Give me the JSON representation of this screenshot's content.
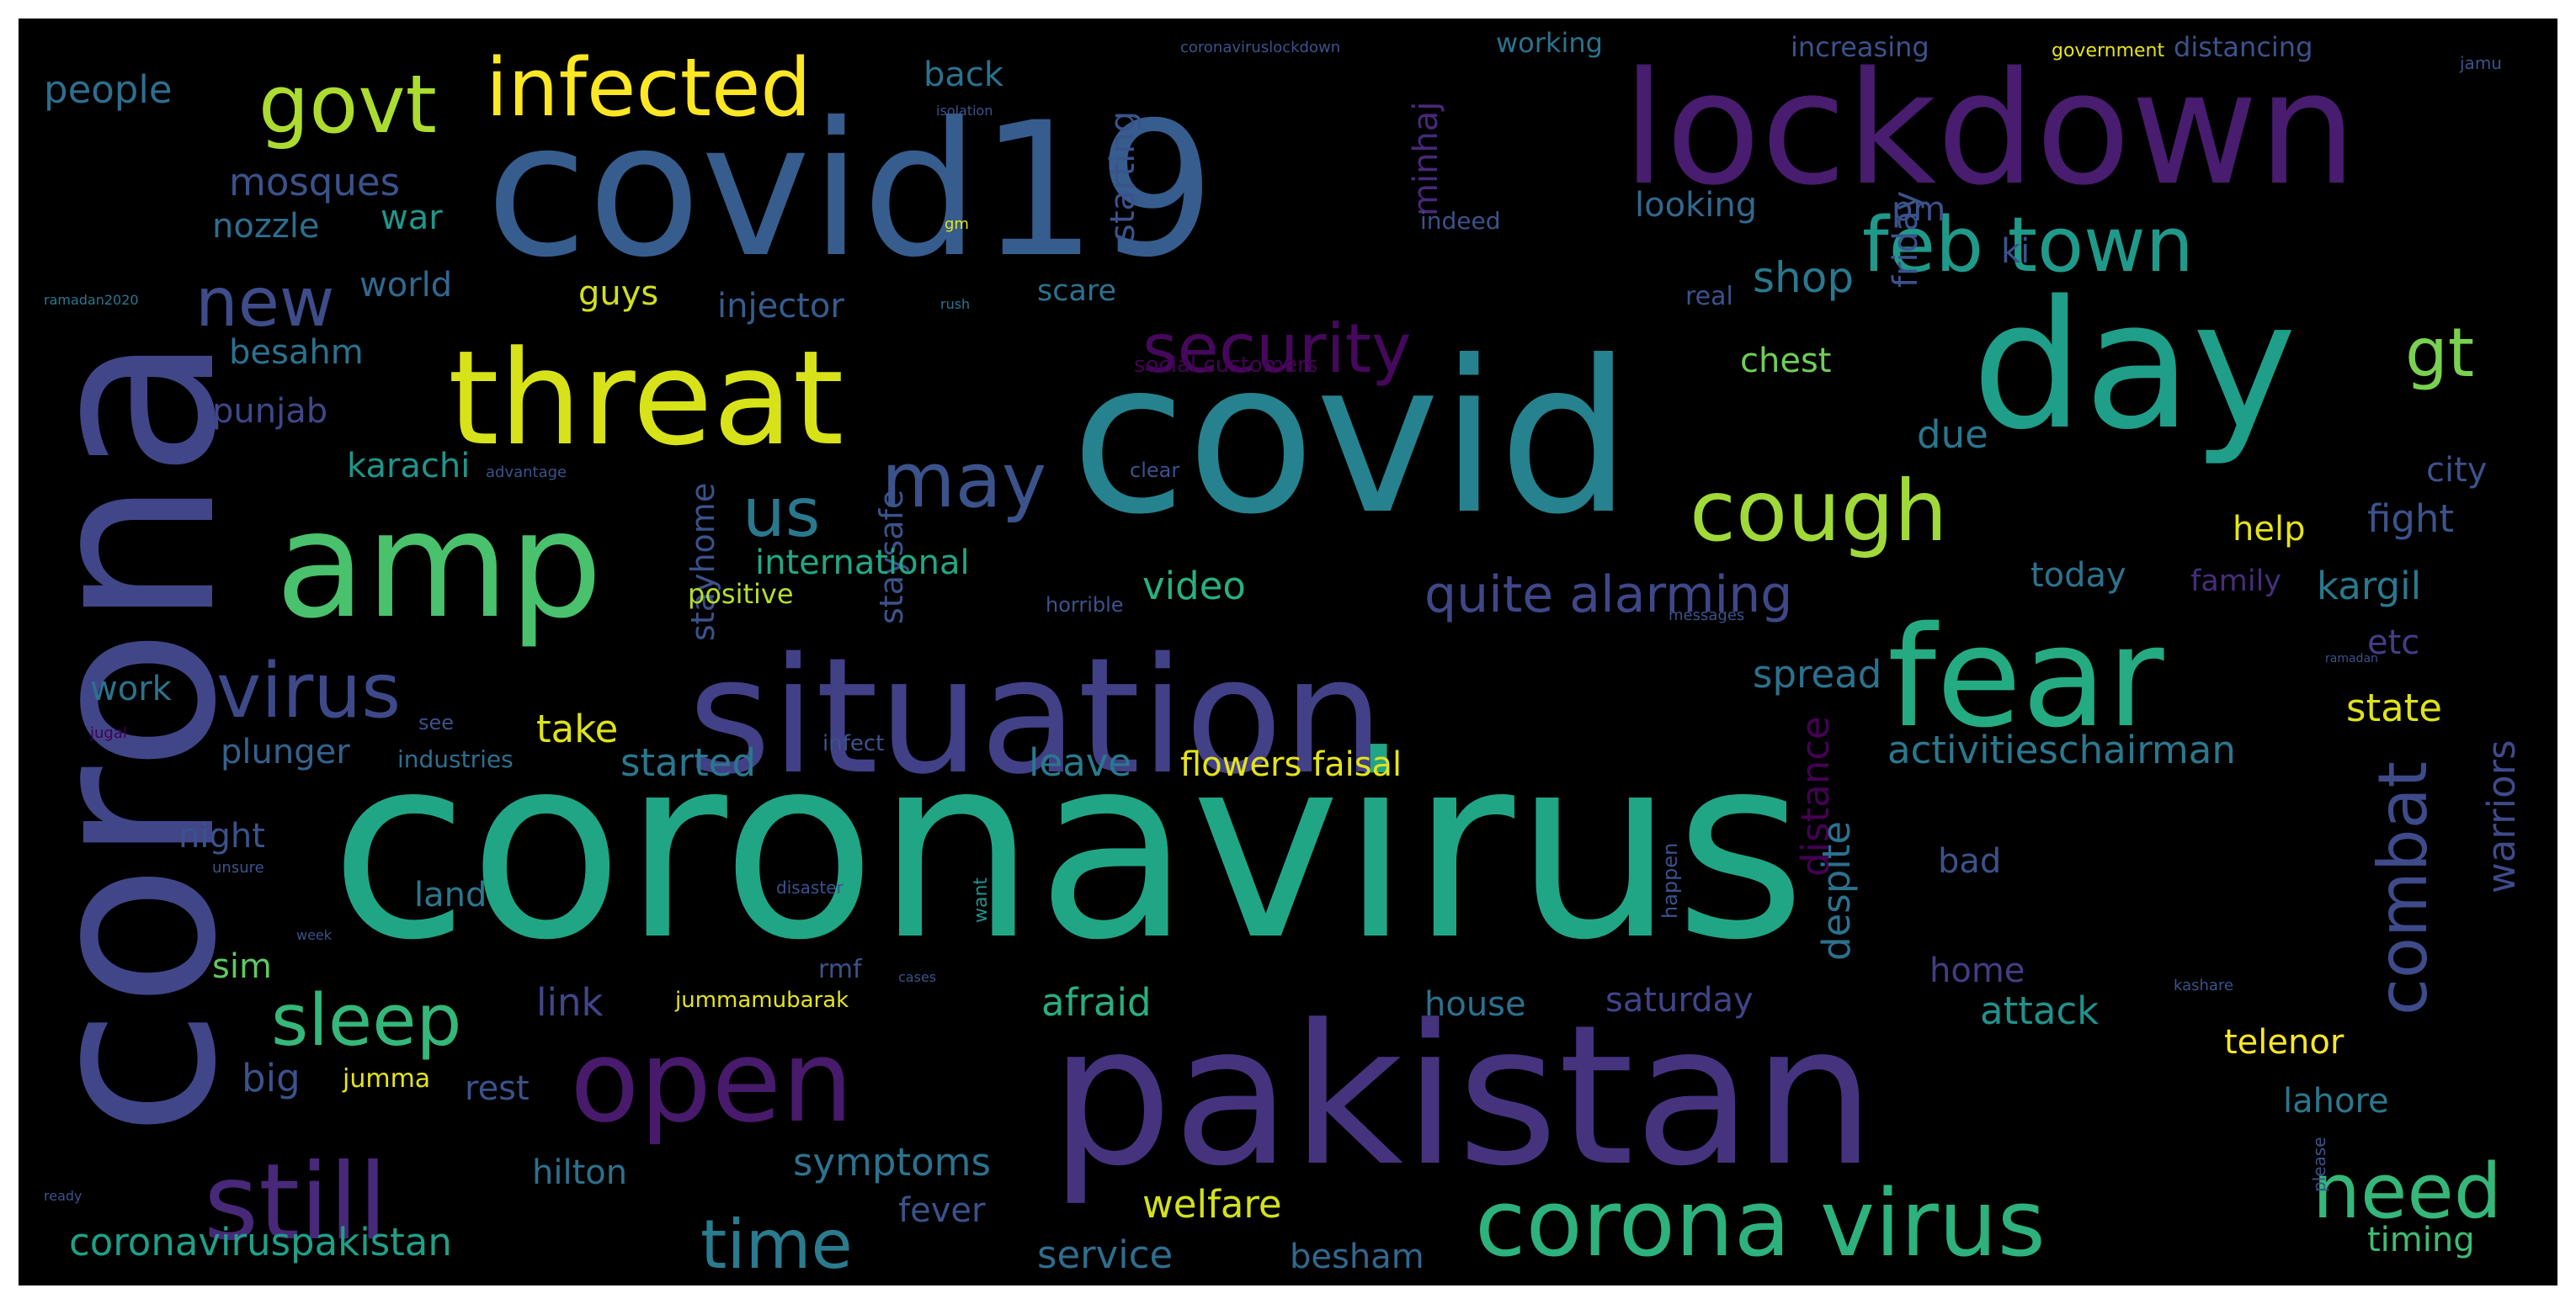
{
  "word_cloud": {
    "background": "#000000",
    "palette": [
      "#440154",
      "#3b528b",
      "#21918c",
      "#5ec962",
      "#fde725"
    ],
    "words": [
      {
        "text": "coronavirus",
        "color": "#21a685"
      },
      {
        "text": "pakistan",
        "color": "#46337e"
      },
      {
        "text": "covid",
        "color": "#26828e"
      },
      {
        "text": "covid19",
        "color": "#365d8d"
      },
      {
        "text": "corona",
        "color": "#404688"
      },
      {
        "text": "situation",
        "color": "#424086"
      },
      {
        "text": "lockdown",
        "color": "#481c6e"
      },
      {
        "text": "day",
        "color": "#1f9e89"
      },
      {
        "text": "threat",
        "color": "#d8e219"
      },
      {
        "text": "amp",
        "color": "#4ac16d"
      },
      {
        "text": "fear",
        "color": "#25ab82"
      },
      {
        "text": "open",
        "color": "#481a6c"
      },
      {
        "text": "corona virus",
        "color": "#2db27d"
      },
      {
        "text": "still",
        "color": "#482878"
      },
      {
        "text": "infected",
        "color": "#fde725"
      },
      {
        "text": "govt",
        "color": "#addc30"
      },
      {
        "text": "virus",
        "color": "#3e4989"
      },
      {
        "text": "sleep",
        "color": "#35b779"
      },
      {
        "text": "new",
        "color": "#3e4c8a"
      },
      {
        "text": "security",
        "color": "#46085c"
      },
      {
        "text": "feb town",
        "color": "#1f9a8a"
      },
      {
        "text": "cough",
        "color": "#a0da39"
      },
      {
        "text": "may",
        "color": "#3b528b"
      },
      {
        "text": "us",
        "color": "#2a788e"
      },
      {
        "text": "combat",
        "color": "#3e4a89"
      },
      {
        "text": "time",
        "color": "#2a7b8e"
      },
      {
        "text": "need",
        "color": "#35b779"
      },
      {
        "text": "gt",
        "color": "#7ad151"
      },
      {
        "text": "quite alarming",
        "color": "#3f4788"
      },
      {
        "text": "people",
        "color": "#2e6e8e"
      },
      {
        "text": "mosques",
        "color": "#3b528b"
      },
      {
        "text": "war",
        "color": "#1f968b"
      },
      {
        "text": "nozzle",
        "color": "#2e6e8e"
      },
      {
        "text": "world",
        "color": "#31688e"
      },
      {
        "text": "guys",
        "color": "#d0e11c"
      },
      {
        "text": "injector",
        "color": "#365c8d"
      },
      {
        "text": "besahm",
        "color": "#2c718e"
      },
      {
        "text": "punjab",
        "color": "#3f4788"
      },
      {
        "text": "karachi",
        "color": "#1f958b"
      },
      {
        "text": "staysafe",
        "color": "#3b528b"
      },
      {
        "text": "stayhome",
        "color": "#3b528b"
      },
      {
        "text": "international",
        "color": "#22a785"
      },
      {
        "text": "video",
        "color": "#2ab07f"
      },
      {
        "text": "positive",
        "color": "#b5de2b"
      },
      {
        "text": "work",
        "color": "#2c728e"
      },
      {
        "text": "take",
        "color": "#dde318"
      },
      {
        "text": "plunger",
        "color": "#33628d"
      },
      {
        "text": "industries",
        "color": "#2e6f8e"
      },
      {
        "text": "started",
        "color": "#2a788e"
      },
      {
        "text": "leave",
        "color": "#29798e"
      },
      {
        "text": "flowers faisal",
        "color": "#e5e419"
      },
      {
        "text": "night",
        "color": "#3b528b"
      },
      {
        "text": "land",
        "color": "#2a788e"
      },
      {
        "text": "sim",
        "color": "#5ec962"
      },
      {
        "text": "big",
        "color": "#3b528b"
      },
      {
        "text": "jumma",
        "color": "#e5e419"
      },
      {
        "text": "rest",
        "color": "#3b528b"
      },
      {
        "text": "hilton",
        "color": "#2c718e"
      },
      {
        "text": "symptoms",
        "color": "#2c728e"
      },
      {
        "text": "fever",
        "color": "#3b528b"
      },
      {
        "text": "welfare",
        "color": "#d2e21b"
      },
      {
        "text": "service",
        "color": "#2e6e8e"
      },
      {
        "text": "besham",
        "color": "#31688e"
      },
      {
        "text": "coronaviruspakistan",
        "color": "#1fa088"
      },
      {
        "text": "link",
        "color": "#404688"
      },
      {
        "text": "afraid",
        "color": "#29af7f"
      },
      {
        "text": "house",
        "color": "#2c718e"
      },
      {
        "text": "saturday",
        "color": "#414487"
      },
      {
        "text": "home",
        "color": "#433d84"
      },
      {
        "text": "attack",
        "color": "#21918c"
      },
      {
        "text": "telenor",
        "color": "#fde725"
      },
      {
        "text": "lahore",
        "color": "#2a788e"
      },
      {
        "text": "timing",
        "color": "#3fbc73"
      },
      {
        "text": "today",
        "color": "#2c728e"
      },
      {
        "text": "family",
        "color": "#472d7b"
      },
      {
        "text": "kargil",
        "color": "#2a788e"
      },
      {
        "text": "etc",
        "color": "#433e85"
      },
      {
        "text": "fight",
        "color": "#3b528b"
      },
      {
        "text": "help",
        "color": "#e5e419"
      },
      {
        "text": "city",
        "color": "#3b528b"
      },
      {
        "text": "chest",
        "color": "#6ece58"
      },
      {
        "text": "due",
        "color": "#2a768e"
      },
      {
        "text": "shop",
        "color": "#2a788e"
      },
      {
        "text": "looking",
        "color": "#31688e"
      },
      {
        "text": "pm",
        "color": "#3b528b"
      },
      {
        "text": "friday",
        "color": "#3b528b"
      },
      {
        "text": "back",
        "color": "#2c718e"
      },
      {
        "text": "starting",
        "color": "#3b528b"
      },
      {
        "text": "minhaj",
        "color": "#482878"
      },
      {
        "text": "indeed",
        "color": "#3b528b"
      },
      {
        "text": "real",
        "color": "#3b528b"
      },
      {
        "text": "ki",
        "color": "#3b528b"
      },
      {
        "text": "scare",
        "color": "#2c718e"
      },
      {
        "text": "spread",
        "color": "#2c718e"
      },
      {
        "text": "distance",
        "color": "#440154"
      },
      {
        "text": "despite",
        "color": "#2c718e"
      },
      {
        "text": "activitieschairman",
        "color": "#2a788e"
      },
      {
        "text": "state",
        "color": "#dde318"
      },
      {
        "text": "warriors",
        "color": "#3e4a89"
      },
      {
        "text": "bad",
        "color": "#3b528b"
      },
      {
        "text": "working",
        "color": "#2c718e"
      },
      {
        "text": "increasing",
        "color": "#3b528b"
      },
      {
        "text": "distancing",
        "color": "#3b528b"
      },
      {
        "text": "government",
        "color": "#e5e419"
      },
      {
        "text": "coronaviruslockdown",
        "color": "#3b528b"
      },
      {
        "text": "jamu",
        "color": "#3b528b"
      },
      {
        "text": "social customers",
        "color": "#440154"
      },
      {
        "text": "horrible",
        "color": "#3b528b"
      },
      {
        "text": "advantage",
        "color": "#3b528b"
      },
      {
        "text": "clear",
        "color": "#3b528b"
      },
      {
        "text": "happen",
        "color": "#3b528b"
      },
      {
        "text": "infect",
        "color": "#3b528b"
      },
      {
        "text": "see",
        "color": "#3b528b"
      },
      {
        "text": "jugal",
        "color": "#440154"
      },
      {
        "text": "isolation",
        "color": "#3b528b"
      },
      {
        "text": "ramadan2020",
        "color": "#2a788e"
      },
      {
        "text": "messages",
        "color": "#3b528b"
      },
      {
        "text": "disaster",
        "color": "#3b528b"
      },
      {
        "text": "unsure",
        "color": "#3b528b"
      },
      {
        "text": "want",
        "color": "#21918c"
      },
      {
        "text": "ready",
        "color": "#3b528b"
      },
      {
        "text": "please",
        "color": "#3b528b"
      },
      {
        "text": "kashare",
        "color": "#3b528b"
      },
      {
        "text": "jummamubarak",
        "color": "#e5e419"
      },
      {
        "text": "rmf",
        "color": "#3b528b"
      },
      {
        "text": "gm",
        "color": "#e5e419"
      },
      {
        "text": "rush",
        "color": "#2a788e"
      },
      {
        "text": "week",
        "color": "#3b528b"
      },
      {
        "text": "cases",
        "color": "#3b528b"
      },
      {
        "text": "ramadan",
        "color": "#3b528b"
      }
    ]
  }
}
